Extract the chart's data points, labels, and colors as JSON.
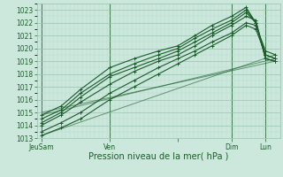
{
  "xlabel": "Pression niveau de la mer( hPa )",
  "bg_color": "#cce8dc",
  "grid_major_color": "#99c4b0",
  "grid_minor_color": "#b8d9cc",
  "line_color": "#1a5c2a",
  "ylim": [
    1013,
    1023.5
  ],
  "yticks": [
    1013,
    1014,
    1015,
    1016,
    1017,
    1018,
    1019,
    1020,
    1021,
    1022,
    1023
  ],
  "xlim": [
    0.0,
    1.0
  ],
  "xtick_labels": [
    "JeuSam",
    "Ven",
    "",
    "Dim",
    "Lun"
  ],
  "xtick_positions": [
    0.02,
    0.3,
    0.58,
    0.8,
    0.94
  ],
  "vlines": [
    0.02,
    0.3,
    0.8,
    0.94
  ],
  "series": [
    {
      "x": [
        0.02,
        0.1,
        0.18,
        0.3,
        0.4,
        0.5,
        0.58,
        0.65,
        0.72,
        0.8,
        0.86,
        0.9,
        0.94,
        0.98
      ],
      "y": [
        1014.8,
        1015.5,
        1016.8,
        1018.5,
        1019.2,
        1019.8,
        1020.2,
        1021.0,
        1021.8,
        1022.5,
        1023.2,
        1022.0,
        1019.2,
        1019.0
      ],
      "straight": false
    },
    {
      "x": [
        0.02,
        0.1,
        0.18,
        0.3,
        0.4,
        0.5,
        0.58,
        0.65,
        0.72,
        0.8,
        0.86,
        0.9,
        0.94,
        0.98
      ],
      "y": [
        1014.2,
        1015.0,
        1016.2,
        1017.8,
        1018.5,
        1019.2,
        1019.8,
        1020.5,
        1021.2,
        1022.0,
        1022.8,
        1022.0,
        1019.5,
        1019.2
      ],
      "straight": false
    },
    {
      "x": [
        0.02,
        0.1,
        0.18,
        0.3,
        0.4,
        0.5,
        0.58,
        0.65,
        0.72,
        0.8,
        0.86,
        0.9,
        0.94,
        0.98
      ],
      "y": [
        1013.5,
        1014.2,
        1015.0,
        1016.5,
        1017.5,
        1018.5,
        1019.2,
        1019.8,
        1020.5,
        1021.2,
        1022.0,
        1021.8,
        1019.8,
        1019.5
      ],
      "straight": false
    },
    {
      "x": [
        0.02,
        0.1,
        0.18,
        0.3,
        0.4,
        0.5,
        0.58,
        0.65,
        0.72,
        0.8,
        0.86,
        0.9,
        0.94,
        0.98
      ],
      "y": [
        1013.2,
        1013.8,
        1014.5,
        1016.0,
        1017.0,
        1018.0,
        1018.8,
        1019.5,
        1020.2,
        1021.0,
        1021.8,
        1021.5,
        1019.5,
        1019.2
      ],
      "straight": false
    },
    {
      "x": [
        0.02,
        0.1,
        0.18,
        0.3,
        0.4,
        0.5,
        0.58,
        0.65,
        0.72,
        0.8,
        0.86,
        0.9,
        0.94,
        0.98
      ],
      "y": [
        1014.5,
        1015.2,
        1016.5,
        1018.0,
        1018.8,
        1019.5,
        1020.0,
        1020.8,
        1021.5,
        1022.2,
        1023.0,
        1022.0,
        1019.2,
        1019.0
      ],
      "straight": false
    },
    {
      "x": [
        0.02,
        0.1,
        0.18,
        0.3,
        0.4,
        0.5,
        0.58,
        0.65,
        0.72,
        0.8,
        0.86,
        0.9,
        0.94,
        0.98
      ],
      "y": [
        1014.0,
        1014.8,
        1015.8,
        1017.2,
        1018.2,
        1019.0,
        1019.5,
        1020.2,
        1021.0,
        1021.8,
        1022.5,
        1022.2,
        1019.2,
        1019.0
      ],
      "straight": false
    },
    {
      "x": [
        0.02,
        0.98
      ],
      "y": [
        1014.8,
        1019.2
      ],
      "straight": true
    },
    {
      "x": [
        0.02,
        0.98
      ],
      "y": [
        1013.2,
        1019.5
      ],
      "straight": true
    },
    {
      "x": [
        0.02,
        0.98
      ],
      "y": [
        1015.0,
        1019.0
      ],
      "straight": true
    }
  ],
  "xlabel_fontsize": 7,
  "ytick_fontsize": 5.5,
  "xtick_fontsize": 5.5
}
